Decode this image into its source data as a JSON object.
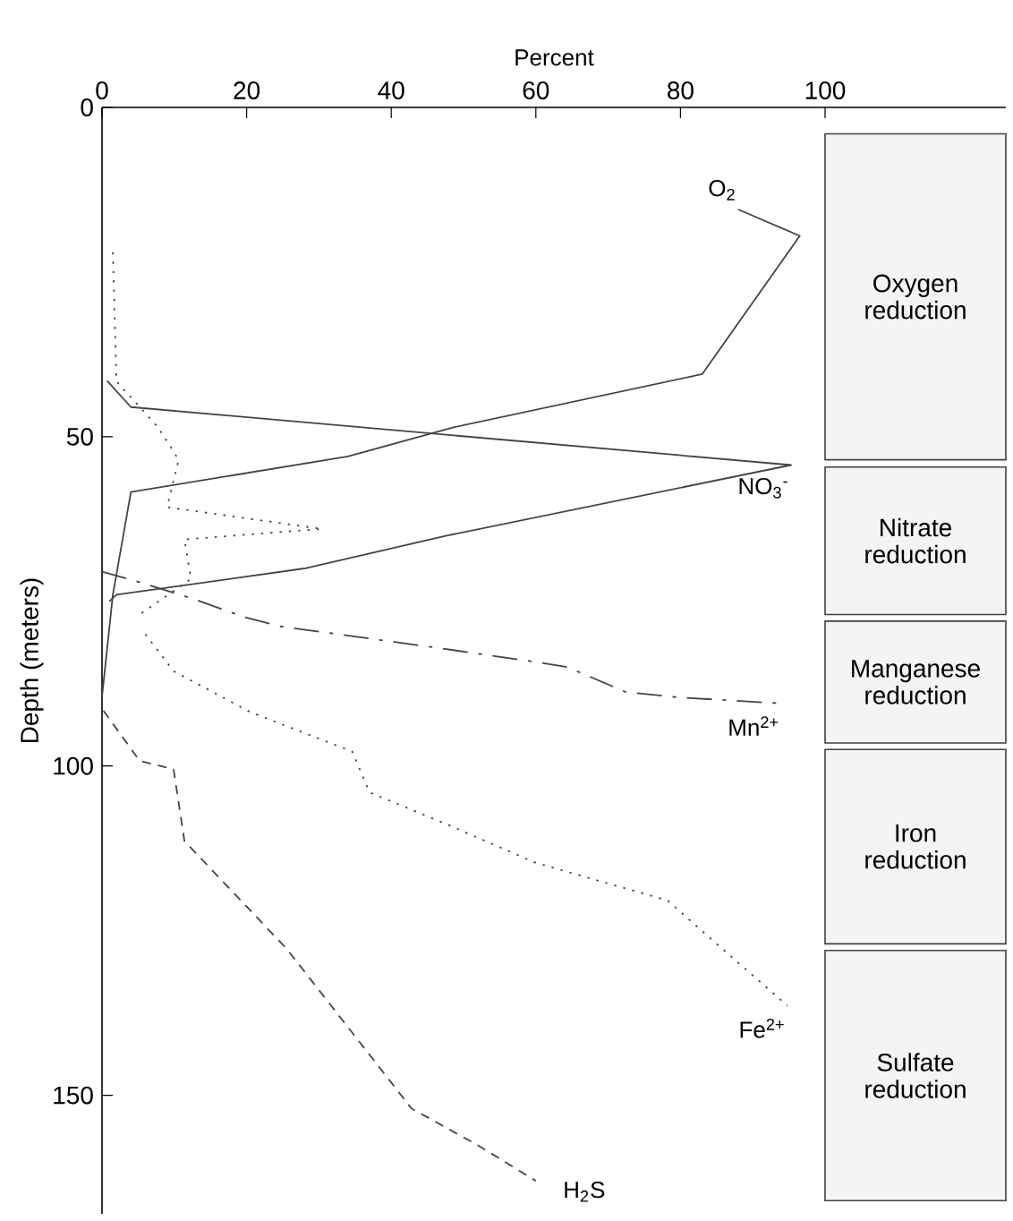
{
  "chart_data": {
    "type": "line",
    "xlabel": "Percent",
    "ylabel": "Depth (meters)",
    "xlim": [
      0,
      125
    ],
    "ylim": [
      168,
      0
    ],
    "xticks": [
      0,
      20,
      40,
      60,
      80,
      100
    ],
    "yticks": [
      0,
      50,
      100,
      150
    ],
    "series": [
      {
        "name": "O$_{2}$",
        "color": "#444444",
        "line_style": "solid",
        "x": [
          88,
          96.5,
          83,
          48.5,
          34,
          4,
          1.5,
          0
        ],
        "values": [
          15.5,
          19.5,
          40.5,
          48.6,
          53,
          58.4,
          74,
          89.5
        ]
      },
      {
        "name": "NO$_{3}$$^{-}$",
        "color": "#444444",
        "line_style": "solid",
        "x": [
          0.7,
          4,
          95.3,
          47.8,
          28,
          2,
          1
        ],
        "values": [
          41.5,
          45.5,
          54.3,
          65,
          70,
          74,
          75
        ]
      },
      {
        "color": "#444444",
        "line_style": "dotted",
        "x": [
          1.5,
          2,
          7.7,
          10.6,
          9,
          30.4,
          11.4,
          12.3,
          5.2
        ],
        "values": [
          22,
          41.6,
          48.5,
          53.5,
          60.7,
          64,
          65.6,
          71.6,
          77
        ]
      },
      {
        "name": "Mn$^{2+}$",
        "color": "#444444",
        "line_style": "dashdot",
        "x": [
          0,
          4,
          12.3,
          19.7,
          24.7,
          46,
          60,
          64.4,
          72.5,
          80,
          94
        ],
        "values": [
          70.5,
          71.7,
          74.5,
          77.4,
          78.8,
          82,
          84.2,
          85,
          88.8,
          89.6,
          90.5
        ]
      },
      {
        "name": "Fe$^{2+}$",
        "color": "#444444",
        "line_style": "dotted",
        "x": [
          6,
          9.9,
          20.5,
          34.6,
          37,
          48,
          60,
          78.2,
          85,
          94.8
        ],
        "values": [
          80,
          85.6,
          91.8,
          97.8,
          104,
          109,
          114.7,
          120.4,
          127,
          136.4
        ]
      },
      {
        "name": "H$_{2}$S",
        "color": "#444444",
        "line_style": "dashed",
        "x": [
          0.2,
          5.2,
          9.9,
          11.4,
          25.5,
          42.8,
          52,
          60
        ],
        "values": [
          91.6,
          99.2,
          100.5,
          111.4,
          127.7,
          152,
          157.6,
          163
        ]
      }
    ],
    "bands": [
      {
        "axis": "y",
        "from": 4,
        "to": 53.5,
        "label": "Oxygen reduction",
        "color": "#f4f4f4"
      },
      {
        "axis": "y",
        "from": 54.6,
        "to": 77,
        "label": "Nitrate reduction",
        "color": "#f4f4f4"
      },
      {
        "axis": "y",
        "from": 78,
        "to": 96.5,
        "label": "Manganese reduction",
        "color": "#f4f4f4"
      },
      {
        "axis": "y",
        "from": 97.5,
        "to": 127,
        "label": "Iron reduction",
        "color": "#f4f4f4"
      },
      {
        "axis": "y",
        "from": 128,
        "to": 166,
        "label": "Sulfate reduction",
        "color": "#f4f4f4"
      }
    ]
  }
}
